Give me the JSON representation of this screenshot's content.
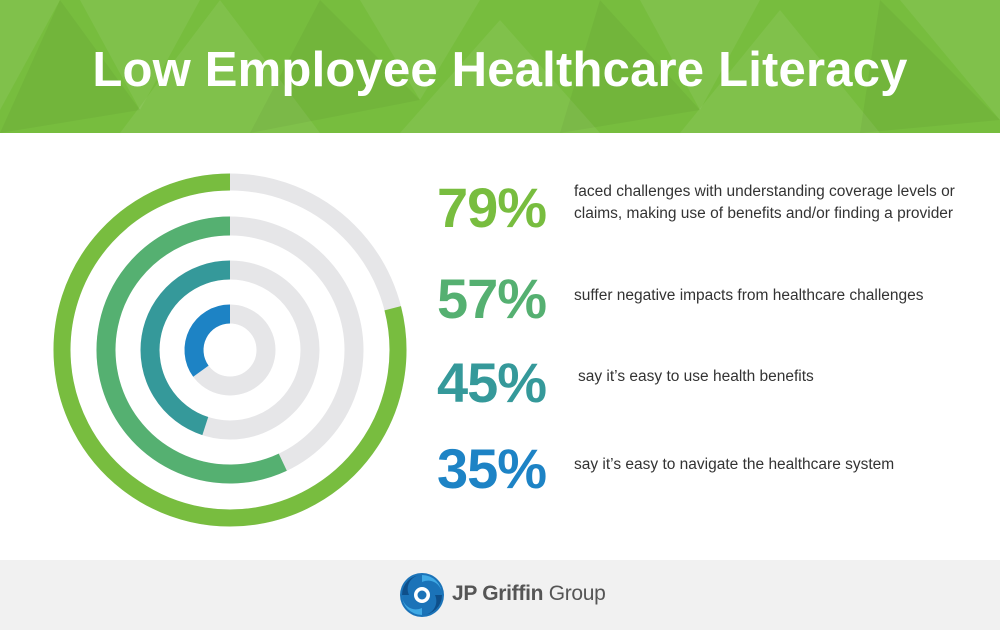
{
  "header": {
    "title": "Low Employee Healthcare Literacy",
    "background_color": "#77bd3e"
  },
  "chart_data": {
    "type": "radial-bar",
    "max": 100,
    "track_color": "#e6e6e8",
    "series": [
      {
        "value": 79,
        "value_label": "79%",
        "label": "faced challenges with understanding coverage levels or claims, making use of benefits and/or finding a provider",
        "color": "#78bd3f"
      },
      {
        "value": 57,
        "value_label": "57%",
        "label": "suffer negative impacts from healthcare challenges",
        "color": "#55b071"
      },
      {
        "value": 45,
        "value_label": "45%",
        "label": "say it’s easy to use health benefits",
        "color": "#35999a"
      },
      {
        "value": 35,
        "value_label": "35%",
        "label": "say it’s easy to navigate the healthcare system",
        "color": "#1d83c5"
      }
    ]
  },
  "footer": {
    "brand_bold": "JP Griffin",
    "brand_regular": "Group",
    "logo_icon": "swirl-logo-icon"
  }
}
